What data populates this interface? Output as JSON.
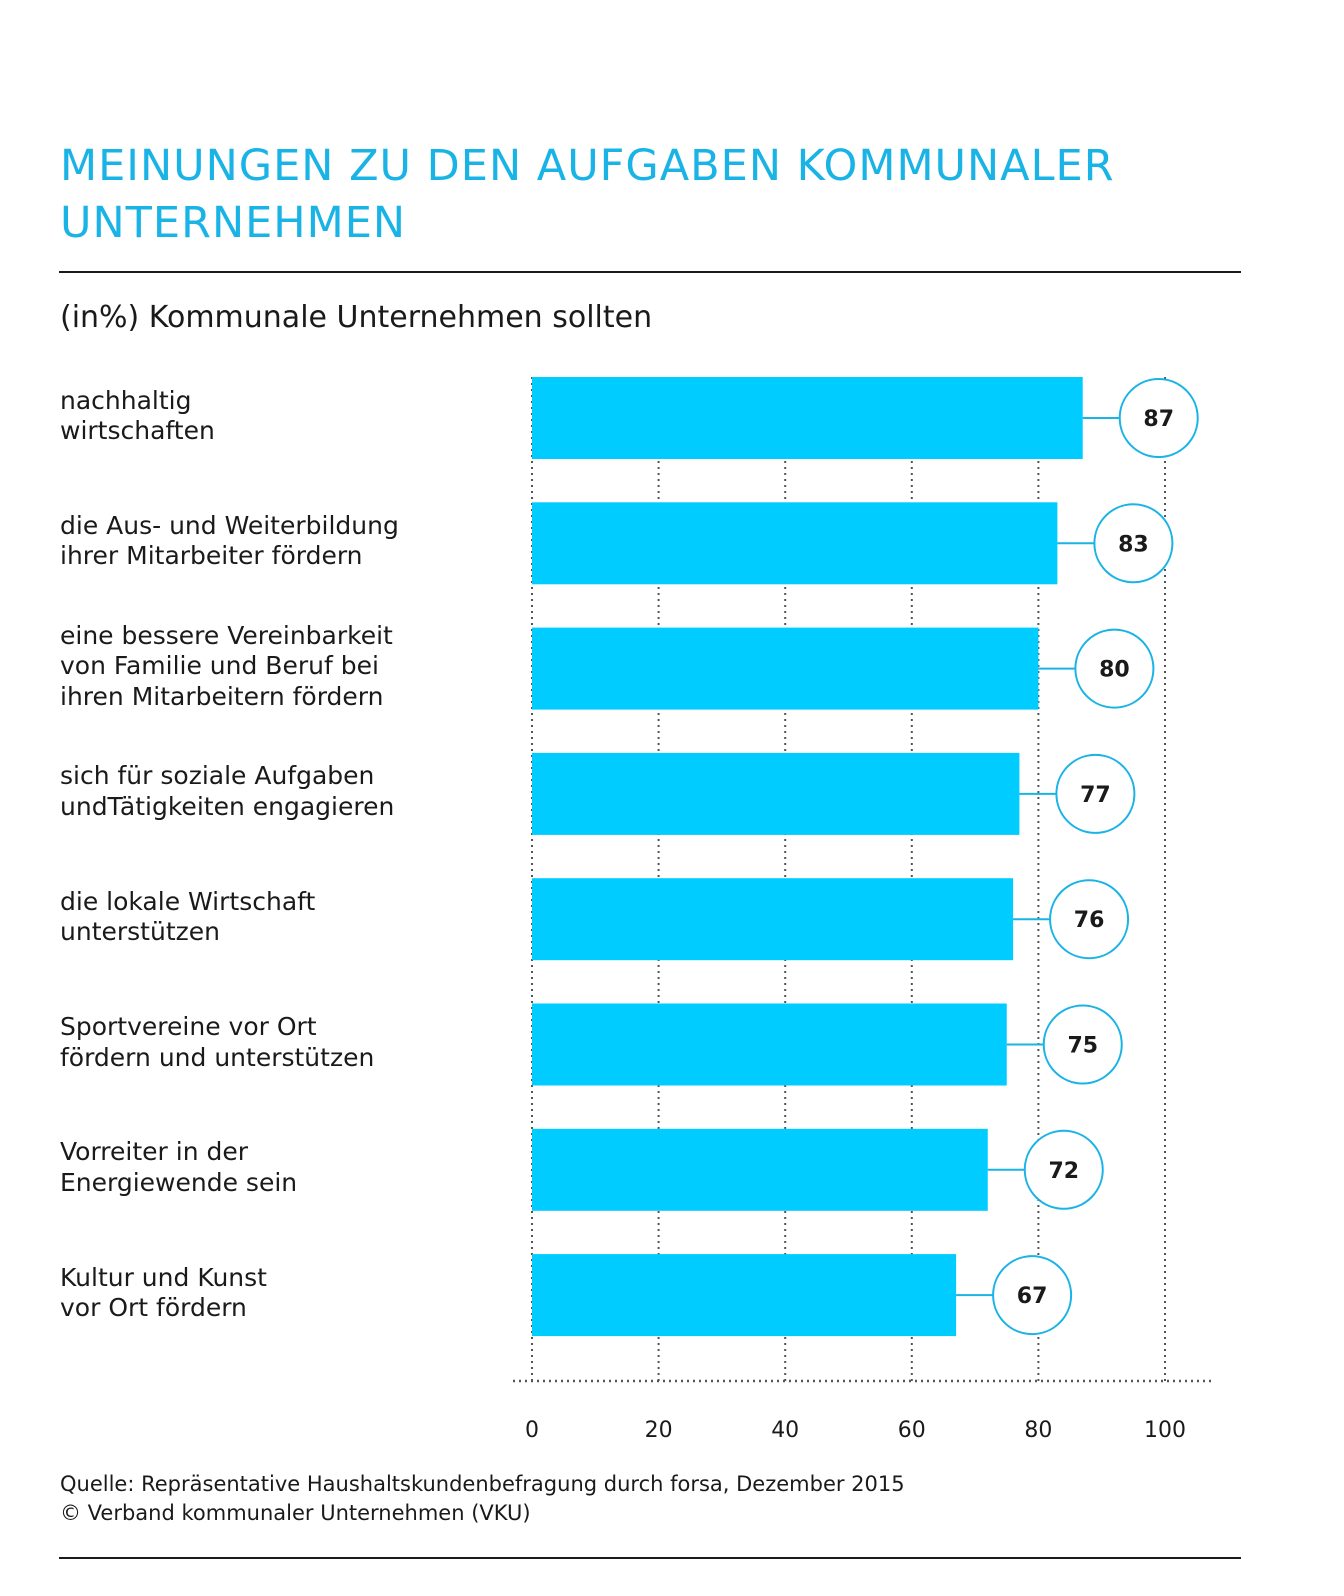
{
  "title_lines": [
    "MEINUNGEN ZU DEN AUFGABEN KOMMUNALER",
    "UNTERNEHMEN"
  ],
  "subtitle": "(in%) Kommunale Unternehmen sollten",
  "colors": {
    "bar": "#00ccff",
    "title": "#1ab3e6",
    "bubble_stroke": "#1ab3e6",
    "text": "#1a1a1a"
  },
  "chart_data": {
    "type": "bar",
    "orientation": "horizontal",
    "categories": [
      [
        "nachhaltig",
        "wirtschaften"
      ],
      [
        "die Aus- und Weiterbildung",
        "ihrer Mitarbeiter fördern"
      ],
      [
        "eine bessere Vereinbarkeit",
        "von Familie und Beruf bei",
        "ihren Mitarbeitern fördern"
      ],
      [
        "sich für soziale Aufgaben",
        "undTätigkeiten engagieren"
      ],
      [
        "die lokale Wirtschaft",
        "unterstützen"
      ],
      [
        "Sportvereine vor Ort",
        "fördern und unterstützen"
      ],
      [
        "Vorreiter in der",
        "Energiewende sein"
      ],
      [
        "Kultur und Kunst",
        "vor Ort fördern"
      ]
    ],
    "values": [
      87,
      83,
      80,
      77,
      76,
      75,
      72,
      67
    ],
    "data_labels": [
      "87",
      "83",
      "80",
      "77",
      "76",
      "75",
      "72",
      "67"
    ],
    "xlim": [
      0,
      100
    ],
    "xticks": [
      0,
      20,
      40,
      60,
      80,
      100
    ],
    "xtick_labels": [
      "0",
      "20",
      "40",
      "60",
      "80",
      "100"
    ],
    "grid": "vertical dotted"
  },
  "source_lines": [
    "Quelle: Repräsentative Haushaltskundenbefragung durch forsa, Dezember 2015",
    "© Verband kommunaler Unternehmen (VKU)"
  ]
}
